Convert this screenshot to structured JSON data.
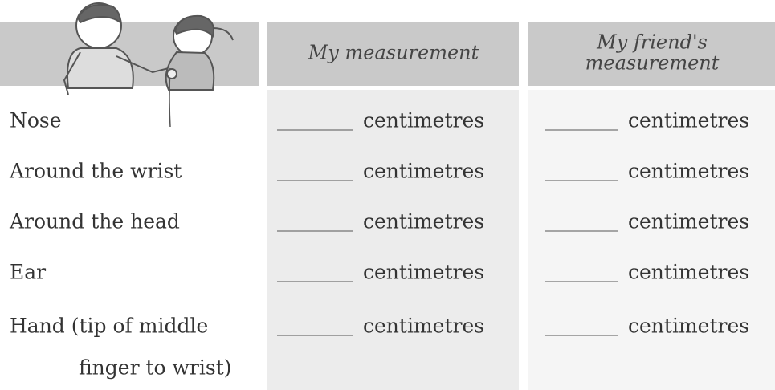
{
  "table": {
    "headers": [
      [
        "My measurement"
      ],
      [
        "My friend's",
        "measurement"
      ]
    ],
    "rows": [
      {
        "label_lines": [
          "Nose"
        ],
        "cells": [
          "centimetres",
          "centimetres"
        ]
      },
      {
        "label_lines": [
          "Around the wrist"
        ],
        "cells": [
          "centimetres",
          "centimetres"
        ]
      },
      {
        "label_lines": [
          "Around the head"
        ],
        "cells": [
          "centimetres",
          "centimetres"
        ]
      },
      {
        "label_lines": [
          "Ear"
        ],
        "cells": [
          "centimetres",
          "centimetres"
        ]
      },
      {
        "label_lines": [
          "Hand (tip of middle",
          "finger to wrist)"
        ],
        "cells": [
          "centimetres",
          "centimetres"
        ]
      }
    ]
  }
}
